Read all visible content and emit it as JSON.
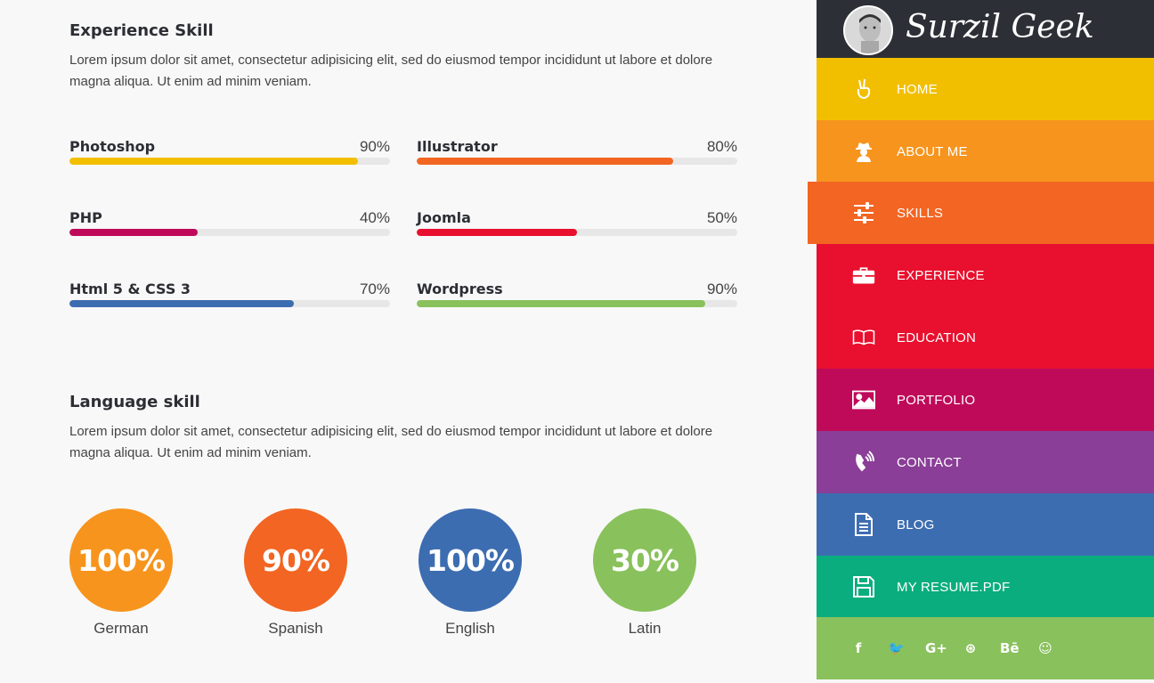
{
  "experience": {
    "title": "Experience Skill",
    "text": "Lorem ipsum dolor sit amet, consectetur adipisicing elit, sed do eiusmod tempor incididunt ut labore et dolore magna aliqua. Ut enim ad minim veniam.",
    "skills": [
      {
        "name": "Photoshop",
        "label": "90%",
        "value": 90,
        "color": "#f2bf00"
      },
      {
        "name": "Illustrator",
        "label": "80%",
        "value": 80,
        "color": "#f26522"
      },
      {
        "name": "PHP",
        "label": "40%",
        "value": 40,
        "color": "#bf0a5a"
      },
      {
        "name": "Joomla",
        "label": "50%",
        "value": 50,
        "color": "#e8102e"
      },
      {
        "name": "Html 5 & CSS 3",
        "label": "70%",
        "value": 70,
        "color": "#3d6db1"
      },
      {
        "name": "Wordpress",
        "label": "90%",
        "value": 90,
        "color": "#89c15c"
      }
    ]
  },
  "language": {
    "title": "Language skill",
    "text": "Lorem ipsum dolor sit amet, consectetur adipisicing elit, sed do eiusmod tempor incididunt ut labore et dolore magna aliqua. Ut enim ad minim veniam.",
    "items": [
      {
        "name": "German",
        "label": "100%",
        "color": "#f7941d"
      },
      {
        "name": "Spanish",
        "label": "90%",
        "color": "#f26522"
      },
      {
        "name": "English",
        "label": "100%",
        "color": "#3d6db1"
      },
      {
        "name": "Latin",
        "label": "30%",
        "color": "#89c15c"
      }
    ]
  },
  "sidebar": {
    "brand": "Surzil Geek",
    "nav": [
      {
        "label": "HOME",
        "icon": "hand-peace-icon",
        "color": "#f2bf00"
      },
      {
        "label": "ABOUT ME",
        "icon": "user-secret-icon",
        "color": "#f7941d"
      },
      {
        "label": "SKILLS",
        "icon": "sliders-icon",
        "color": "#f26522",
        "active": true
      },
      {
        "label": "EXPERIENCE",
        "icon": "briefcase-icon",
        "color": "#e8102e"
      },
      {
        "label": "EDUCATION",
        "icon": "book-icon",
        "color": "#e8102e"
      },
      {
        "label": "PORTFOLIO",
        "icon": "image-icon",
        "color": "#bf0a5a"
      },
      {
        "label": "CONTACT",
        "icon": "phone-icon",
        "color": "#8a3e97"
      },
      {
        "label": "BLOG",
        "icon": "document-icon",
        "color": "#3d6db1"
      },
      {
        "label": "MY RESUME.PDF",
        "icon": "save-icon",
        "color": "#0aad7d"
      }
    ],
    "social": [
      {
        "glyph": "f",
        "icon": "facebook-icon"
      },
      {
        "glyph": "🐦",
        "icon": "twitter-icon"
      },
      {
        "glyph": "G+",
        "icon": "google-plus-icon"
      },
      {
        "glyph": "⊛",
        "icon": "dribbble-icon"
      },
      {
        "glyph": "Bē",
        "icon": "behance-icon"
      },
      {
        "glyph": "☺",
        "icon": "github-icon"
      }
    ]
  }
}
